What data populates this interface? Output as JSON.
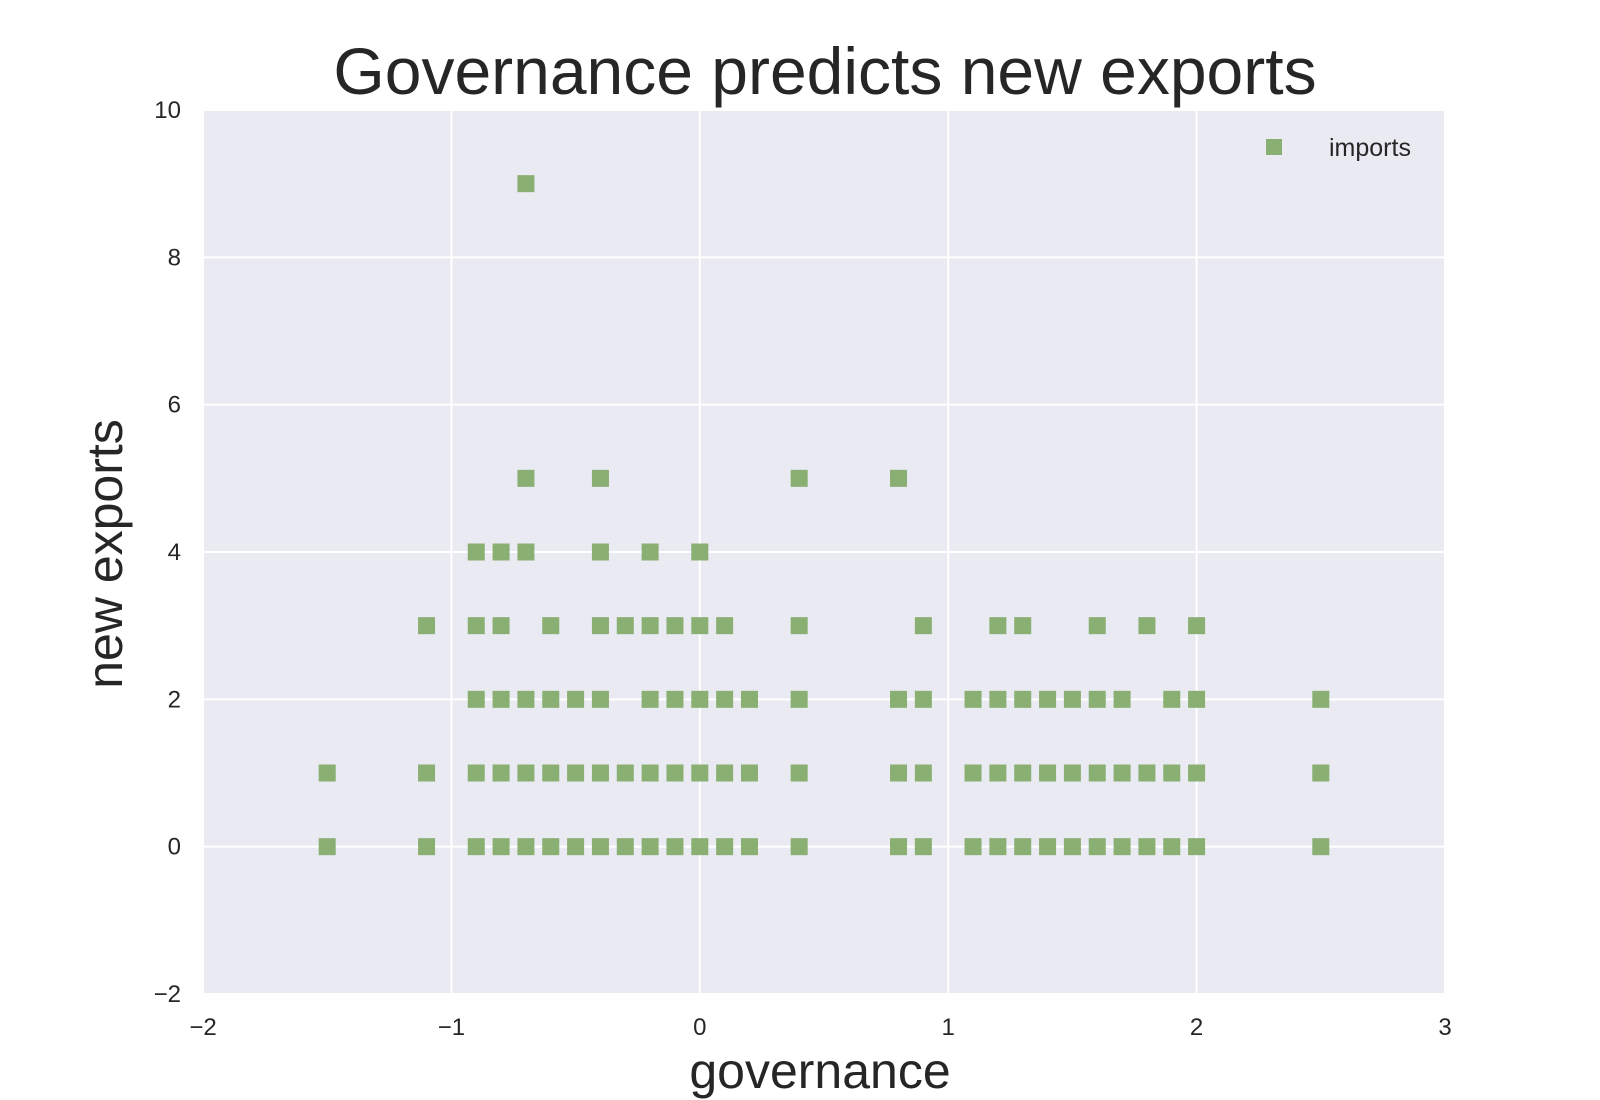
{
  "chart_data": {
    "type": "scatter",
    "title": "Governance predicts new exports",
    "xlabel": "governance",
    "ylabel": "new exports",
    "xlim": [
      -2,
      3
    ],
    "ylim": [
      -2,
      10
    ],
    "xticks": [
      -2,
      -1,
      0,
      1,
      2,
      3
    ],
    "yticks": [
      -2,
      0,
      2,
      4,
      6,
      8,
      10
    ],
    "xtick_labels": [
      "−2",
      "−1",
      "0",
      "1",
      "2",
      "3"
    ],
    "ytick_labels": [
      "−2",
      "0",
      "2",
      "4",
      "6",
      "8",
      "10"
    ],
    "grid": true,
    "legend_position": "top-right",
    "background_color": "#eaeaf2",
    "grid_color": "#ffffff",
    "series": [
      {
        "name": "imports",
        "marker": "square",
        "color": "#8aaf72",
        "points": [
          [
            -1.5,
            0
          ],
          [
            -1.5,
            1
          ],
          [
            -1.1,
            0
          ],
          [
            -1.1,
            1
          ],
          [
            -1.1,
            3
          ],
          [
            -0.9,
            0
          ],
          [
            -0.9,
            1
          ],
          [
            -0.9,
            2
          ],
          [
            -0.9,
            3
          ],
          [
            -0.9,
            4
          ],
          [
            -0.8,
            0
          ],
          [
            -0.8,
            1
          ],
          [
            -0.8,
            2
          ],
          [
            -0.8,
            3
          ],
          [
            -0.8,
            4
          ],
          [
            -0.7,
            0
          ],
          [
            -0.7,
            1
          ],
          [
            -0.7,
            2
          ],
          [
            -0.7,
            4
          ],
          [
            -0.7,
            5
          ],
          [
            -0.7,
            9
          ],
          [
            -0.6,
            0
          ],
          [
            -0.6,
            1
          ],
          [
            -0.6,
            2
          ],
          [
            -0.6,
            3
          ],
          [
            -0.5,
            0
          ],
          [
            -0.5,
            1
          ],
          [
            -0.5,
            2
          ],
          [
            -0.4,
            0
          ],
          [
            -0.4,
            1
          ],
          [
            -0.4,
            2
          ],
          [
            -0.4,
            3
          ],
          [
            -0.4,
            4
          ],
          [
            -0.4,
            5
          ],
          [
            -0.3,
            0
          ],
          [
            -0.3,
            1
          ],
          [
            -0.3,
            3
          ],
          [
            -0.2,
            0
          ],
          [
            -0.2,
            1
          ],
          [
            -0.2,
            2
          ],
          [
            -0.2,
            3
          ],
          [
            -0.2,
            4
          ],
          [
            -0.1,
            0
          ],
          [
            -0.1,
            1
          ],
          [
            -0.1,
            2
          ],
          [
            -0.1,
            3
          ],
          [
            0.0,
            0
          ],
          [
            0.0,
            1
          ],
          [
            0.0,
            2
          ],
          [
            0.0,
            3
          ],
          [
            0.0,
            4
          ],
          [
            0.1,
            0
          ],
          [
            0.1,
            1
          ],
          [
            0.1,
            2
          ],
          [
            0.1,
            3
          ],
          [
            0.2,
            0
          ],
          [
            0.2,
            1
          ],
          [
            0.2,
            2
          ],
          [
            0.4,
            0
          ],
          [
            0.4,
            1
          ],
          [
            0.4,
            2
          ],
          [
            0.4,
            3
          ],
          [
            0.4,
            5
          ],
          [
            0.8,
            0
          ],
          [
            0.8,
            1
          ],
          [
            0.8,
            2
          ],
          [
            0.8,
            5
          ],
          [
            0.9,
            0
          ],
          [
            0.9,
            1
          ],
          [
            0.9,
            2
          ],
          [
            0.9,
            3
          ],
          [
            1.1,
            0
          ],
          [
            1.1,
            1
          ],
          [
            1.1,
            2
          ],
          [
            1.2,
            0
          ],
          [
            1.2,
            1
          ],
          [
            1.2,
            2
          ],
          [
            1.2,
            3
          ],
          [
            1.3,
            0
          ],
          [
            1.3,
            1
          ],
          [
            1.3,
            2
          ],
          [
            1.3,
            3
          ],
          [
            1.4,
            0
          ],
          [
            1.4,
            1
          ],
          [
            1.4,
            2
          ],
          [
            1.5,
            0
          ],
          [
            1.5,
            1
          ],
          [
            1.5,
            2
          ],
          [
            1.6,
            0
          ],
          [
            1.6,
            1
          ],
          [
            1.6,
            2
          ],
          [
            1.6,
            3
          ],
          [
            1.7,
            0
          ],
          [
            1.7,
            1
          ],
          [
            1.7,
            2
          ],
          [
            1.8,
            0
          ],
          [
            1.8,
            1
          ],
          [
            1.8,
            3
          ],
          [
            1.9,
            0
          ],
          [
            1.9,
            1
          ],
          [
            1.9,
            2
          ],
          [
            2.0,
            0
          ],
          [
            2.0,
            1
          ],
          [
            2.0,
            2
          ],
          [
            2.0,
            3
          ],
          [
            2.5,
            0
          ],
          [
            2.5,
            1
          ],
          [
            2.5,
            2
          ]
        ]
      }
    ]
  }
}
